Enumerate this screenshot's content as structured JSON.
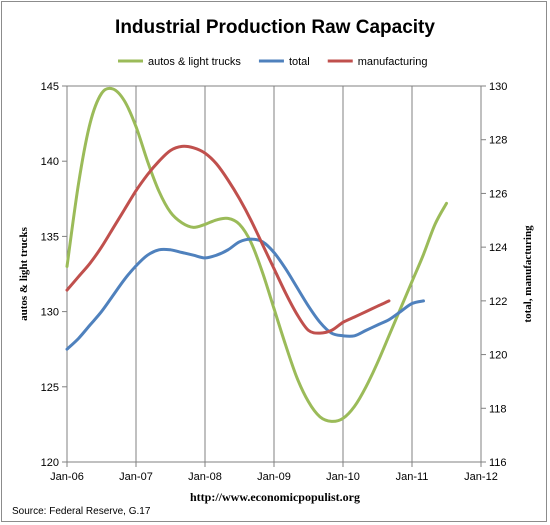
{
  "chart_data": {
    "type": "line",
    "title": "Industrial Production Raw Capacity",
    "x_tick_labels": [
      "Jan-06",
      "Jan-07",
      "Jan-08",
      "Jan-09",
      "Jan-10",
      "Jan-11",
      "Jan-12"
    ],
    "x_range": [
      "Jan-06",
      "Jan-12"
    ],
    "y_left": {
      "label": "autos & light trucks",
      "range": [
        120,
        145
      ],
      "ticks": [
        120,
        125,
        130,
        135,
        140,
        145
      ]
    },
    "y_right": {
      "label": "total, manufacturing",
      "range": [
        116,
        130
      ],
      "ticks": [
        116,
        118,
        120,
        122,
        124,
        126,
        128,
        130
      ]
    },
    "grid": "vertical at each year",
    "legend_position": "top",
    "series": [
      {
        "name": "autos & light trucks",
        "axis": "left",
        "color": "#9BBB59",
        "points": [
          [
            "Jan-06",
            133.0
          ],
          [
            "Mar-06",
            138.5
          ],
          [
            "May-06",
            142.5
          ],
          [
            "Jul-06",
            144.5
          ],
          [
            "Sep-06",
            144.8
          ],
          [
            "Nov-06",
            144.0
          ],
          [
            "Jan-07",
            142.3
          ],
          [
            "Mar-07",
            140.0
          ],
          [
            "May-07",
            138.0
          ],
          [
            "Jul-07",
            136.6
          ],
          [
            "Sep-07",
            135.9
          ],
          [
            "Nov-07",
            135.6
          ],
          [
            "Jan-08",
            135.8
          ],
          [
            "Mar-08",
            136.1
          ],
          [
            "May-08",
            136.2
          ],
          [
            "Jul-08",
            135.8
          ],
          [
            "Sep-08",
            134.6
          ],
          [
            "Nov-08",
            132.6
          ],
          [
            "Jan-09",
            130.2
          ],
          [
            "Mar-09",
            127.8
          ],
          [
            "May-09",
            125.6
          ],
          [
            "Jul-09",
            124.0
          ],
          [
            "Sep-09",
            123.0
          ],
          [
            "Nov-09",
            122.7
          ],
          [
            "Jan-10",
            122.9
          ],
          [
            "Mar-10",
            123.7
          ],
          [
            "May-10",
            125.0
          ],
          [
            "Jul-10",
            126.6
          ],
          [
            "Sep-10",
            128.4
          ],
          [
            "Nov-10",
            130.2
          ],
          [
            "Jan-11",
            132.0
          ],
          [
            "Mar-11",
            133.8
          ],
          [
            "May-11",
            135.8
          ],
          [
            "Jul-11",
            137.2
          ]
        ]
      },
      {
        "name": "total",
        "axis": "right",
        "color": "#4F81BD",
        "points": [
          [
            "Jan-06",
            120.2
          ],
          [
            "Mar-06",
            120.6
          ],
          [
            "May-06",
            121.1
          ],
          [
            "Jul-06",
            121.6
          ],
          [
            "Sep-06",
            122.2
          ],
          [
            "Nov-06",
            122.8
          ],
          [
            "Jan-07",
            123.3
          ],
          [
            "Mar-07",
            123.7
          ],
          [
            "May-07",
            123.9
          ],
          [
            "Jul-07",
            123.9
          ],
          [
            "Sep-07",
            123.8
          ],
          [
            "Nov-07",
            123.7
          ],
          [
            "Jan-08",
            123.6
          ],
          [
            "Mar-08",
            123.7
          ],
          [
            "May-08",
            123.9
          ],
          [
            "Jul-08",
            124.2
          ],
          [
            "Sep-08",
            124.3
          ],
          [
            "Nov-08",
            124.2
          ],
          [
            "Jan-09",
            123.8
          ],
          [
            "Mar-09",
            123.2
          ],
          [
            "May-09",
            122.5
          ],
          [
            "Jul-09",
            121.8
          ],
          [
            "Sep-09",
            121.2
          ],
          [
            "Nov-09",
            120.8
          ],
          [
            "Jan-10",
            120.7
          ],
          [
            "Mar-10",
            120.7
          ],
          [
            "May-10",
            120.9
          ],
          [
            "Jul-10",
            121.1
          ],
          [
            "Sep-10",
            121.3
          ],
          [
            "Nov-10",
            121.6
          ],
          [
            "Jan-11",
            121.9
          ],
          [
            "Mar-11",
            122.0
          ]
        ]
      },
      {
        "name": "manufacturing",
        "axis": "right",
        "color": "#C0504D",
        "points": [
          [
            "Jan-06",
            122.4
          ],
          [
            "Mar-06",
            122.9
          ],
          [
            "May-06",
            123.4
          ],
          [
            "Jul-06",
            124.0
          ],
          [
            "Sep-06",
            124.7
          ],
          [
            "Nov-06",
            125.4
          ],
          [
            "Jan-07",
            126.1
          ],
          [
            "Mar-07",
            126.7
          ],
          [
            "May-07",
            127.2
          ],
          [
            "Jul-07",
            127.6
          ],
          [
            "Sep-07",
            127.75
          ],
          [
            "Nov-07",
            127.7
          ],
          [
            "Jan-08",
            127.5
          ],
          [
            "Mar-08",
            127.1
          ],
          [
            "May-08",
            126.5
          ],
          [
            "Jul-08",
            125.8
          ],
          [
            "Sep-08",
            125.0
          ],
          [
            "Nov-08",
            124.1
          ],
          [
            "Jan-09",
            123.2
          ],
          [
            "Mar-09",
            122.3
          ],
          [
            "May-09",
            121.5
          ],
          [
            "Jul-09",
            120.9
          ],
          [
            "Sep-09",
            120.8
          ],
          [
            "Nov-09",
            120.9
          ],
          [
            "Jan-10",
            121.2
          ],
          [
            "Mar-10",
            121.4
          ],
          [
            "May-10",
            121.6
          ],
          [
            "Jul-10",
            121.8
          ],
          [
            "Sep-10",
            122.0
          ]
        ]
      }
    ],
    "xlabel": "http://www.economicpopulist.org",
    "source": "Source:  Federal Reserve, G.17"
  }
}
